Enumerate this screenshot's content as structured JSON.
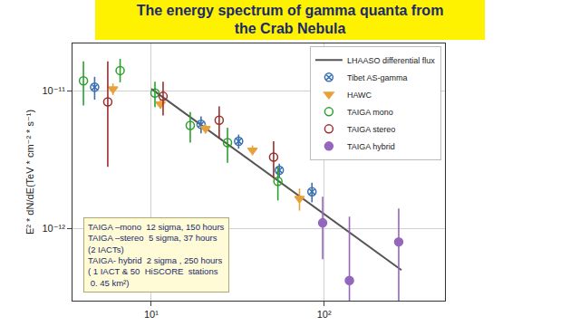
{
  "chart_data": {
    "type": "scatter",
    "title": "The energy spectrum of gamma quanta from\nthe Crab Nebula",
    "ylabel": "E² * dN/dE(TeV * cm⁻² * s⁻¹)",
    "log": true,
    "grid": true,
    "legend": "upper right",
    "xlim": [
      3.5,
      500
    ],
    "ylim": [
      3e-13,
      2.2e-11
    ],
    "xticks": [
      {
        "value": 10,
        "label": "10¹"
      },
      {
        "value": 100,
        "label": "10²"
      }
    ],
    "yticks": [
      {
        "value": 1e-12,
        "label": "10⁻¹²"
      },
      {
        "value": 1e-11,
        "label": "10⁻¹¹"
      }
    ],
    "annotations": [
      "TAIGA –mono  12 sigma, 150 hours",
      "TAIGA –stereo  5 sigma, 37 hours",
      "(2 IACTs)",
      "TAIGA- hybrid  2 sigma , 250 hours",
      "( 1 IACT & 50  HiSCORE  stations",
      " 0. 45 km²)"
    ],
    "series": [
      {
        "name": "LHAASO differential flux",
        "type": "line",
        "color": "#555555",
        "line_style": "solid",
        "x": [
          10,
          280
        ],
        "values": [
          1.03e-11,
          5e-13
        ]
      },
      {
        "name": "Tibet AS-gamma",
        "type": "scatter",
        "color": "#3a6fb0",
        "marker": "circle-x-open",
        "x": [
          4.7,
          19.4,
          32,
          55,
          85
        ],
        "values": [
          1.06e-11,
          5.7e-12,
          4.3e-12,
          2.65e-12,
          1.85e-12
        ],
        "err_plus": [
          2e-12,
          8e-13,
          5e-13,
          3e-13,
          3e-13
        ],
        "err_minus": [
          2e-12,
          8e-13,
          5e-13,
          3e-13,
          3e-13
        ]
      },
      {
        "name": "HAWC",
        "type": "scatter",
        "color": "#e8a13a",
        "marker": "triangle-down",
        "x": [
          6.0,
          11.3,
          20.6,
          38.5,
          72
        ],
        "values": [
          1.03e-11,
          8e-12,
          5.3e-12,
          3.7e-12,
          1.65e-12
        ],
        "err_plus": [
          1e-12,
          6e-13,
          4e-13,
          3e-13,
          3e-13
        ],
        "err_minus": [
          1e-12,
          6e-13,
          4e-13,
          3e-13,
          3e-13
        ]
      },
      {
        "name": "TAIGA mono",
        "type": "scatter",
        "color": "#2ca02c",
        "marker": "circle-open",
        "x": [
          4.05,
          6.6,
          10.5,
          16.8,
          27.6,
          54
        ],
        "values": [
          1.18e-11,
          1.4e-11,
          9.6e-12,
          5.6e-12,
          4.2e-12,
          2.2e-12
        ],
        "err_plus": [
          4.5e-12,
          3e-12,
          2e-12,
          1.4e-12,
          1.2e-12,
          6e-13
        ],
        "err_minus": [
          4e-12,
          2.5e-12,
          2e-12,
          1.4e-12,
          1.2e-12,
          6e-13
        ]
      },
      {
        "name": "TAIGA stereo",
        "type": "scatter",
        "color": "#9b2d2d",
        "marker": "circle-open",
        "x": [
          5.6,
          11.7,
          24.7,
          51
        ],
        "values": [
          8.3e-12,
          9.1e-12,
          6.1e-12,
          3.3e-12
        ],
        "err_plus": [
          8e-12,
          2.5e-12,
          1.6e-12,
          1e-12
        ],
        "err_minus": [
          5.5e-12,
          2.5e-12,
          1.6e-12,
          1e-12
        ]
      },
      {
        "name": "TAIGA hybrid",
        "type": "scatter",
        "color": "#9467bd",
        "marker": "circle",
        "x": [
          98,
          140,
          270
        ],
        "values": [
          1.1e-12,
          4.2e-13,
          8e-13
        ],
        "err_plus": [
          6e-13,
          8e-13,
          6e-13
        ],
        "err_minus": [
          5e-13,
          3.8e-13,
          5e-13
        ]
      }
    ]
  }
}
